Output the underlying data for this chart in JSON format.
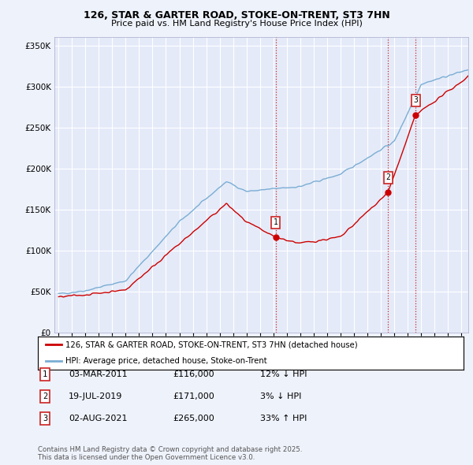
{
  "title_line1": "126, STAR & GARTER ROAD, STOKE-ON-TRENT, ST3 7HN",
  "title_line2": "Price paid vs. HM Land Registry's House Price Index (HPI)",
  "background_color": "#eef2fb",
  "plot_background": "#e4eaf8",
  "grid_color": "#ffffff",
  "hpi_color": "#7aadd4",
  "price_color": "#cc0000",
  "ylim": [
    0,
    360000
  ],
  "yticks": [
    0,
    50000,
    100000,
    150000,
    200000,
    250000,
    300000,
    350000
  ],
  "ytick_labels": [
    "£0",
    "£50K",
    "£100K",
    "£150K",
    "£200K",
    "£250K",
    "£300K",
    "£350K"
  ],
  "sale_dates_num": [
    2011.17,
    2019.54,
    2021.58
  ],
  "sale_prices": [
    116000,
    171000,
    265000
  ],
  "sale_labels": [
    "1",
    "2",
    "3"
  ],
  "sale_date_strs": [
    "03-MAR-2011",
    "19-JUL-2019",
    "02-AUG-2021"
  ],
  "sale_price_strs": [
    "£116,000",
    "£171,000",
    "£265,000"
  ],
  "sale_hpi_strs": [
    "12% ↓ HPI",
    "3% ↓ HPI",
    "33% ↑ HPI"
  ],
  "legend_label_red": "126, STAR & GARTER ROAD, STOKE-ON-TRENT, ST3 7HN (detached house)",
  "legend_label_blue": "HPI: Average price, detached house, Stoke-on-Trent",
  "footnote": "Contains HM Land Registry data © Crown copyright and database right 2025.\nThis data is licensed under the Open Government Licence v3.0.",
  "vline_color": "#cc0000",
  "fig_width": 6.0,
  "fig_height": 5.9,
  "dpi": 100
}
